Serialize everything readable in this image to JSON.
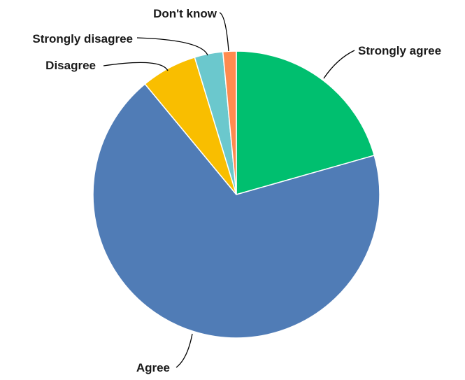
{
  "chart_data": {
    "type": "pie",
    "title": "",
    "start_angle_deg": 0,
    "direction": "clockwise",
    "legend": "none",
    "slices": [
      {
        "label": "Strongly agree",
        "value": 20.6,
        "color": "#00bf6f"
      },
      {
        "label": "Agree",
        "value": 68.4,
        "color": "#507cb6"
      },
      {
        "label": "Disagree",
        "value": 6.3,
        "color": "#f9be00"
      },
      {
        "label": "Strongly disagree",
        "value": 3.2,
        "color": "#6bc8cd"
      },
      {
        "label": "Don't know",
        "value": 1.5,
        "color": "#ff8b4f"
      }
    ]
  }
}
